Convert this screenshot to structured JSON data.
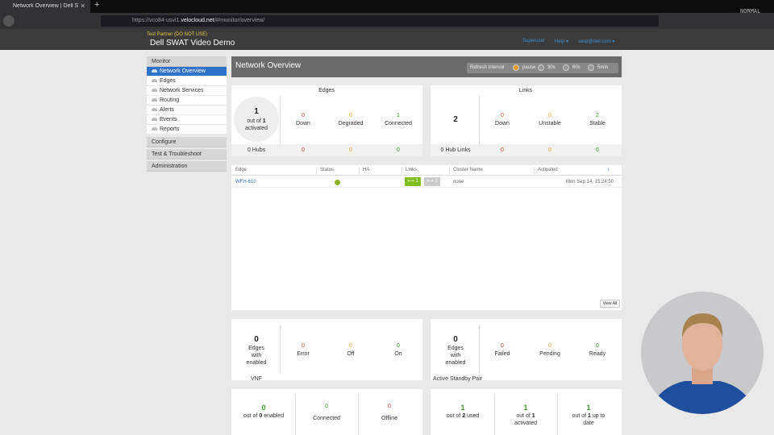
{
  "browser": {
    "tab_title": "Network Overview | Dell S",
    "url_prefix": "https://vco84-usvi1.",
    "url_domain": "velocloud.net",
    "url_path": "/#/monitor/overview/",
    "mode": "NORMAL"
  },
  "header": {
    "partner": "Test Partner (DO NOT USE)",
    "title": "Dell SWAT Video Demo",
    "nav": [
      "Superuser",
      "Help",
      "swat@dell.com"
    ]
  },
  "sidebar": {
    "sections": [
      {
        "title": "Monitor",
        "items": [
          "Network Overview",
          "Edges",
          "Network Services",
          "Routing",
          "Alerts",
          "Events",
          "Reports"
        ],
        "selected": 0
      },
      {
        "title": "Configure"
      },
      {
        "title": "Test & Troubleshoot"
      },
      {
        "title": "Administration"
      }
    ]
  },
  "page": {
    "title": "Network Overview",
    "refresh_label": "Refresh Interval",
    "refresh_options": [
      "pause",
      "30s",
      "60s",
      "5min"
    ],
    "refresh_selected": 0
  },
  "panels": [
    {
      "title": "Edges",
      "total": {
        "value": 1,
        "before": "out of",
        "of": 1,
        "after": "activated"
      },
      "stats": [
        {
          "value": 0,
          "label": "Down",
          "color": "#d43f3a"
        },
        {
          "value": 0,
          "label": "Degraded",
          "color": "#eea236"
        },
        {
          "value": 1,
          "label": "Connected",
          "color": "#3c9a2a"
        }
      ],
      "footer": {
        "label": "0 Hubs",
        "values": [
          0,
          0,
          0
        ]
      }
    },
    {
      "title": "Links",
      "total": {
        "value": 2
      },
      "stats": [
        {
          "value": 0,
          "label": "Down",
          "color": "#d43f3a"
        },
        {
          "value": 0,
          "label": "Unstable",
          "color": "#eea236"
        },
        {
          "value": 2,
          "label": "Stable",
          "color": "#3c9a2a"
        }
      ],
      "footer": {
        "label": "0 Hub Links",
        "values": [
          0,
          0,
          0
        ]
      }
    }
  ],
  "table": {
    "columns": [
      "Edge",
      "Status",
      "HA",
      "Links",
      "Cluster Name",
      "Activated"
    ],
    "rows": [
      {
        "edge": "WFH-610",
        "links": [
          1,
          1
        ],
        "cluster": "none",
        "activated": "Mon Sep 14, 15:24:50"
      }
    ],
    "button": "View All"
  },
  "features": [
    {
      "title": "VNF",
      "count": 0,
      "count_label": "Edges with enabled",
      "stats": [
        {
          "value": 0,
          "label": "Error",
          "color": "#d43f3a"
        },
        {
          "value": 0,
          "label": "Off",
          "color": "#eea236"
        },
        {
          "value": 0,
          "label": "On",
          "color": "#3c9a2a"
        }
      ]
    },
    {
      "title": "Active Standby Pair",
      "count": 0,
      "count_label": "Edges with enabled",
      "stats": [
        {
          "value": 0,
          "label": "Failed",
          "color": "#d43f3a"
        },
        {
          "value": 0,
          "label": "Pending",
          "color": "#eea236"
        },
        {
          "value": 0,
          "label": "Ready",
          "color": "#3c9a2a"
        }
      ]
    }
  ],
  "summaries": [
    [
      {
        "value": 0,
        "before": "out of",
        "of": 0,
        "after": "enabled",
        "color": "#3c9a2a"
      },
      {
        "value": 0,
        "label": "Connected",
        "color": "#3c9a2a"
      },
      {
        "value": 0,
        "label": "Offline",
        "color": "#d43f3a"
      }
    ],
    [
      {
        "value": 1,
        "before": "out of",
        "of": 2,
        "after": "used",
        "color": "#3c9a2a"
      },
      {
        "value": 1,
        "before": "out of",
        "of": 1,
        "after": "activated",
        "color": "#3c9a2a"
      },
      {
        "value": 1,
        "before": "out of",
        "of": 1,
        "after": "up to date",
        "color": "#3c9a2a"
      }
    ]
  ]
}
